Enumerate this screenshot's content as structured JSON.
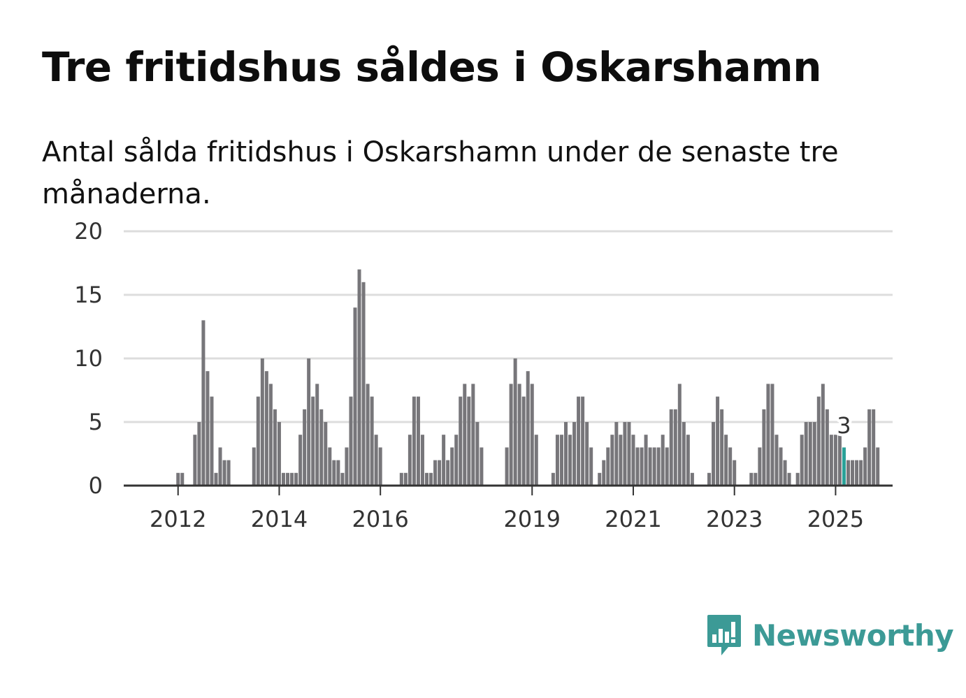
{
  "header": {
    "title": "Tre fritidshus såldes i Oskarshamn",
    "subtitle": "Antal sålda fritidshus i Oskarshamn under de senaste tre månaderna."
  },
  "brand": {
    "name": "Newsworthy",
    "icon": "newsworthy-logo-icon",
    "color": "#3c9a96"
  },
  "colors": {
    "bar": "#77767a",
    "highlight": "#2aa198",
    "grid": "#dddddd",
    "axis": "#333333"
  },
  "chart_data": {
    "type": "bar",
    "ylim": [
      0,
      20
    ],
    "yticks": [
      0,
      5,
      10,
      15,
      20
    ],
    "grid": true,
    "xticks": [
      {
        "label": "2012",
        "index": 8
      },
      {
        "label": "2014",
        "index": 32
      },
      {
        "label": "2016",
        "index": 56
      },
      {
        "label": "2019",
        "index": 92
      },
      {
        "label": "2021",
        "index": 116
      },
      {
        "label": "2023",
        "index": 140
      },
      {
        "label": "2025",
        "index": 164
      }
    ],
    "start": "2011-05",
    "values": [
      0,
      0,
      0,
      0,
      0,
      0,
      0,
      0,
      1,
      1,
      0,
      0,
      4,
      5,
      13,
      9,
      7,
      1,
      3,
      2,
      2,
      0,
      0,
      0,
      0,
      0,
      3,
      7,
      10,
      9,
      8,
      6,
      5,
      1,
      1,
      1,
      1,
      4,
      6,
      10,
      7,
      8,
      6,
      5,
      3,
      2,
      2,
      1,
      3,
      7,
      14,
      17,
      16,
      8,
      7,
      4,
      3,
      0,
      0,
      0,
      0,
      1,
      1,
      4,
      7,
      7,
      4,
      1,
      1,
      2,
      2,
      4,
      2,
      3,
      4,
      7,
      8,
      7,
      8,
      5,
      3,
      0,
      0,
      0,
      0,
      0,
      3,
      8,
      10,
      8,
      7,
      9,
      8,
      4,
      0,
      0,
      0,
      1,
      4,
      4,
      5,
      4,
      5,
      7,
      7,
      5,
      3,
      0,
      1,
      2,
      3,
      4,
      5,
      4,
      5,
      5,
      4,
      3,
      3,
      4,
      3,
      3,
      3,
      4,
      3,
      6,
      6,
      8,
      5,
      4,
      1,
      0,
      0,
      0,
      1,
      5,
      7,
      6,
      4,
      3,
      2,
      0,
      0,
      0,
      1,
      1,
      3,
      6,
      8,
      8,
      4,
      3,
      2,
      1,
      0,
      1,
      4,
      5,
      5,
      5,
      7,
      8,
      6,
      4,
      4,
      4,
      3,
      2,
      2,
      2,
      2,
      3,
      6,
      6,
      3
    ],
    "highlight_index": 166,
    "annotation": {
      "text": "3",
      "index": 166
    }
  }
}
